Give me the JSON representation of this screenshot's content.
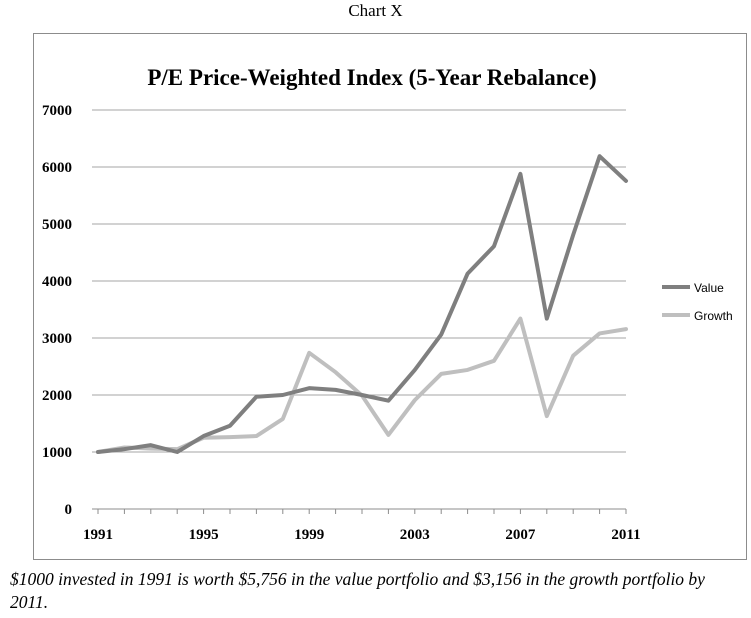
{
  "header_label": "Chart X",
  "caption": "$1000 invested in 1991 is worth $5,756 in the value portfolio and $3,156 in the growth portfolio by 2011.",
  "chart_data": {
    "type": "line",
    "title": "P/E Price-Weighted Index (5-Year Rebalance)",
    "xlabel": "",
    "ylabel": "",
    "x": [
      1991,
      1992,
      1993,
      1994,
      1995,
      1996,
      1997,
      1998,
      1999,
      2000,
      2001,
      2002,
      2003,
      2004,
      2005,
      2006,
      2007,
      2008,
      2009,
      2010,
      2011
    ],
    "x_tick_labels": [
      "1991",
      "1995",
      "1999",
      "2003",
      "2007",
      "2011"
    ],
    "x_ticks": [
      1991,
      1995,
      1999,
      2003,
      2007,
      2011
    ],
    "ylim": [
      0,
      7000
    ],
    "y_ticks": [
      0,
      1000,
      2000,
      3000,
      4000,
      5000,
      6000,
      7000
    ],
    "y_tick_labels": [
      "0",
      "1000",
      "2000",
      "3000",
      "4000",
      "5000",
      "6000",
      "7000"
    ],
    "grid": "horizontal",
    "legend_position": "right",
    "series": [
      {
        "name": "Value",
        "color": "#7f7f7f",
        "values": [
          1000,
          1050,
          1120,
          1000,
          1280,
          1460,
          1970,
          2000,
          2120,
          2090,
          2000,
          1900,
          2440,
          3060,
          4130,
          4610,
          5880,
          3340,
          4810,
          6190,
          5756
        ]
      },
      {
        "name": "Growth",
        "color": "#bfbfbf",
        "values": [
          1000,
          1080,
          1060,
          1050,
          1250,
          1260,
          1280,
          1580,
          2740,
          2400,
          1990,
          1300,
          1910,
          2370,
          2440,
          2600,
          3340,
          1630,
          2690,
          3080,
          3156
        ]
      }
    ]
  }
}
